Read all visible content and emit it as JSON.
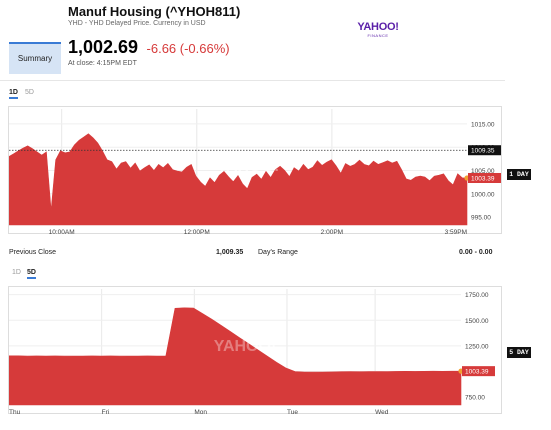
{
  "header": {
    "title": "Manuf Housing (^YHOH811)",
    "subtitle": "YHD - YHD Delayed Price. Currency in USD",
    "logo_main": "YAHOO!",
    "logo_sub": "FINANCE"
  },
  "quote": {
    "tab": "Summary",
    "price": "1,002.69",
    "change": "-6.66 (-0.66%)",
    "close_time": "At close: 4:15PM EDT"
  },
  "range_tabs_1": {
    "d1": "1D",
    "d5": "5D",
    "active": "1D"
  },
  "range_tabs_2": {
    "d1": "1D",
    "d5": "5D",
    "active": "5D"
  },
  "stats": {
    "prev_close_label": "Previous Close",
    "prev_close_value": "1,009.35",
    "days_range_label": "Day's Range",
    "days_range_value": "0.00 - 0.00"
  },
  "colors": {
    "area": "#d63a3a",
    "accent": "#3a7bd5",
    "marker": "#f0a030"
  },
  "chart_data": [
    {
      "type": "area",
      "range": "1D",
      "watermark": "YAHOO!",
      "x_ticks": [
        "10:00AM",
        "12:00PM",
        "2:00PM",
        "3:59PM"
      ],
      "y_ticks": [
        1015.0,
        1010.0,
        1005.0,
        1000.0,
        995.0
      ],
      "ylim": [
        993.3,
        1018.2
      ],
      "ref_line": {
        "value": 1009.35,
        "label": "1009.35"
      },
      "last": {
        "value": 1003.39,
        "label": "1003.39"
      },
      "side_tag": "1 DAY",
      "values": [
        1008.0,
        1008.6,
        1009.2,
        1009.8,
        1010.3,
        1009.7,
        1009.0,
        1008.3,
        1009.0,
        996.5,
        1007.3,
        1009.2,
        1008.8,
        1009.0,
        1010.5,
        1011.5,
        1012.2,
        1012.9,
        1012.0,
        1010.9,
        1009.2,
        1007.3,
        1006.9,
        1005.3,
        1006.6,
        1006.9,
        1005.5,
        1006.6,
        1004.9,
        1005.6,
        1006.2,
        1005.0,
        1006.3,
        1005.6,
        1006.5,
        1005.2,
        1004.9,
        1004.7,
        1005.7,
        1006.3,
        1003.8,
        1002.5,
        1001.6,
        1003.4,
        1002.4,
        1004.0,
        1004.8,
        1003.6,
        1002.6,
        1003.9,
        1002.1,
        1001.1,
        1003.5,
        1004.2,
        1003.1,
        1004.8,
        1003.5,
        1005.2,
        1005.9,
        1005.0,
        1003.7,
        1005.6,
        1004.9,
        1006.3,
        1005.2,
        1005.7,
        1007.1,
        1006.1,
        1006.8,
        1007.3,
        1006.0,
        1004.4,
        1006.5,
        1005.9,
        1006.3,
        1007.2,
        1006.3,
        1006.0,
        1007.0,
        1006.3,
        1006.7,
        1007.1,
        1006.6,
        1007.0,
        1005.2,
        1003.2,
        1002.9,
        1003.6,
        1003.8,
        1003.6,
        1002.8,
        1003.8,
        1004.0,
        1004.3,
        1002.8,
        1001.9,
        1004.3,
        1003.4,
        1003.4
      ]
    },
    {
      "type": "area",
      "range": "5D",
      "watermark": "YAHOO!",
      "x_ticks": [
        "Thu",
        "Fri",
        "Mon",
        "Tue",
        "Wed"
      ],
      "y_ticks": [
        1750.0,
        1500.0,
        1250.0,
        1000.0,
        750.0
      ],
      "ylim": [
        673.0,
        1805.0
      ],
      "last": {
        "value": 1003.39,
        "label": "1003.39"
      },
      "side_tag": "5 DAY",
      "values": [
        1153,
        1153,
        1150,
        1152,
        1151,
        1152,
        1150,
        1151,
        1151,
        1152,
        1151,
        1152,
        1150,
        1151,
        1151,
        1152,
        1151,
        1151,
        1617,
        1622,
        1619,
        1565,
        1510,
        1450,
        1390,
        1330,
        1270,
        1210,
        1150,
        1090,
        1035,
        1000,
        995,
        994,
        995,
        996,
        998,
        999,
        998,
        1000,
        1000,
        999,
        1001,
        1002,
        1001,
        1002,
        1003,
        1002,
        1003,
        1003
      ]
    }
  ]
}
